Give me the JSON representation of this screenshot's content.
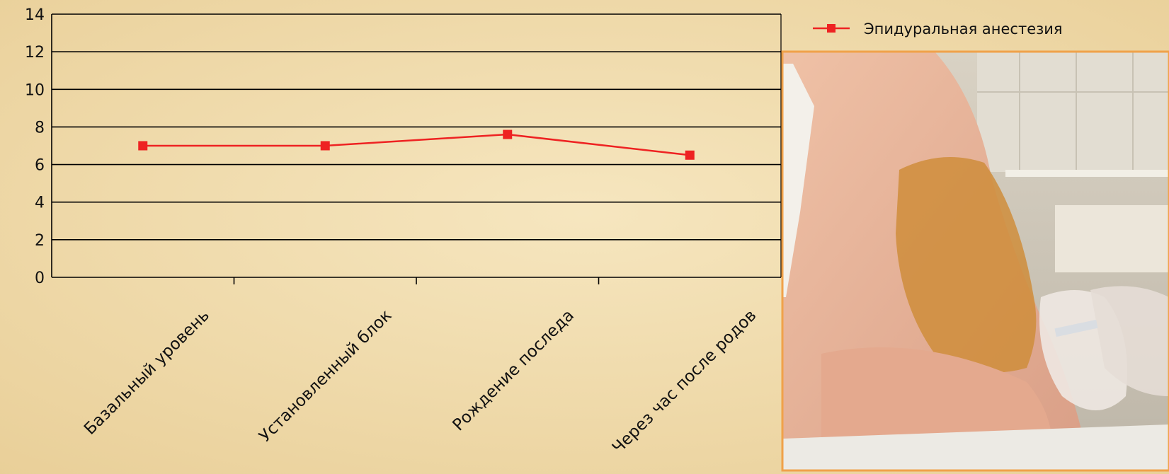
{
  "chart_data": {
    "type": "line",
    "title": "",
    "xlabel": "",
    "ylabel": "",
    "categories": [
      "Базальный уровень",
      "Установленный блок",
      "Рождение последа",
      "Через час после родов"
    ],
    "series": [
      {
        "name": "Эпидуральная анестезия",
        "values": [
          7.0,
          7.0,
          7.6,
          6.5
        ],
        "color": "#ee2222",
        "marker": "square"
      }
    ],
    "ylim": [
      0,
      14
    ],
    "yticks": [
      "0",
      "2",
      "4",
      "6",
      "8",
      "10",
      "12",
      "14"
    ],
    "grid": true,
    "legend_position": "top-right"
  },
  "colors": {
    "background": "#f1dcae",
    "gridline": "#000000",
    "series": "#ee2222",
    "photo_border": "#f0a24a"
  },
  "photo": {
    "name": "epidural-procedure-photo"
  }
}
